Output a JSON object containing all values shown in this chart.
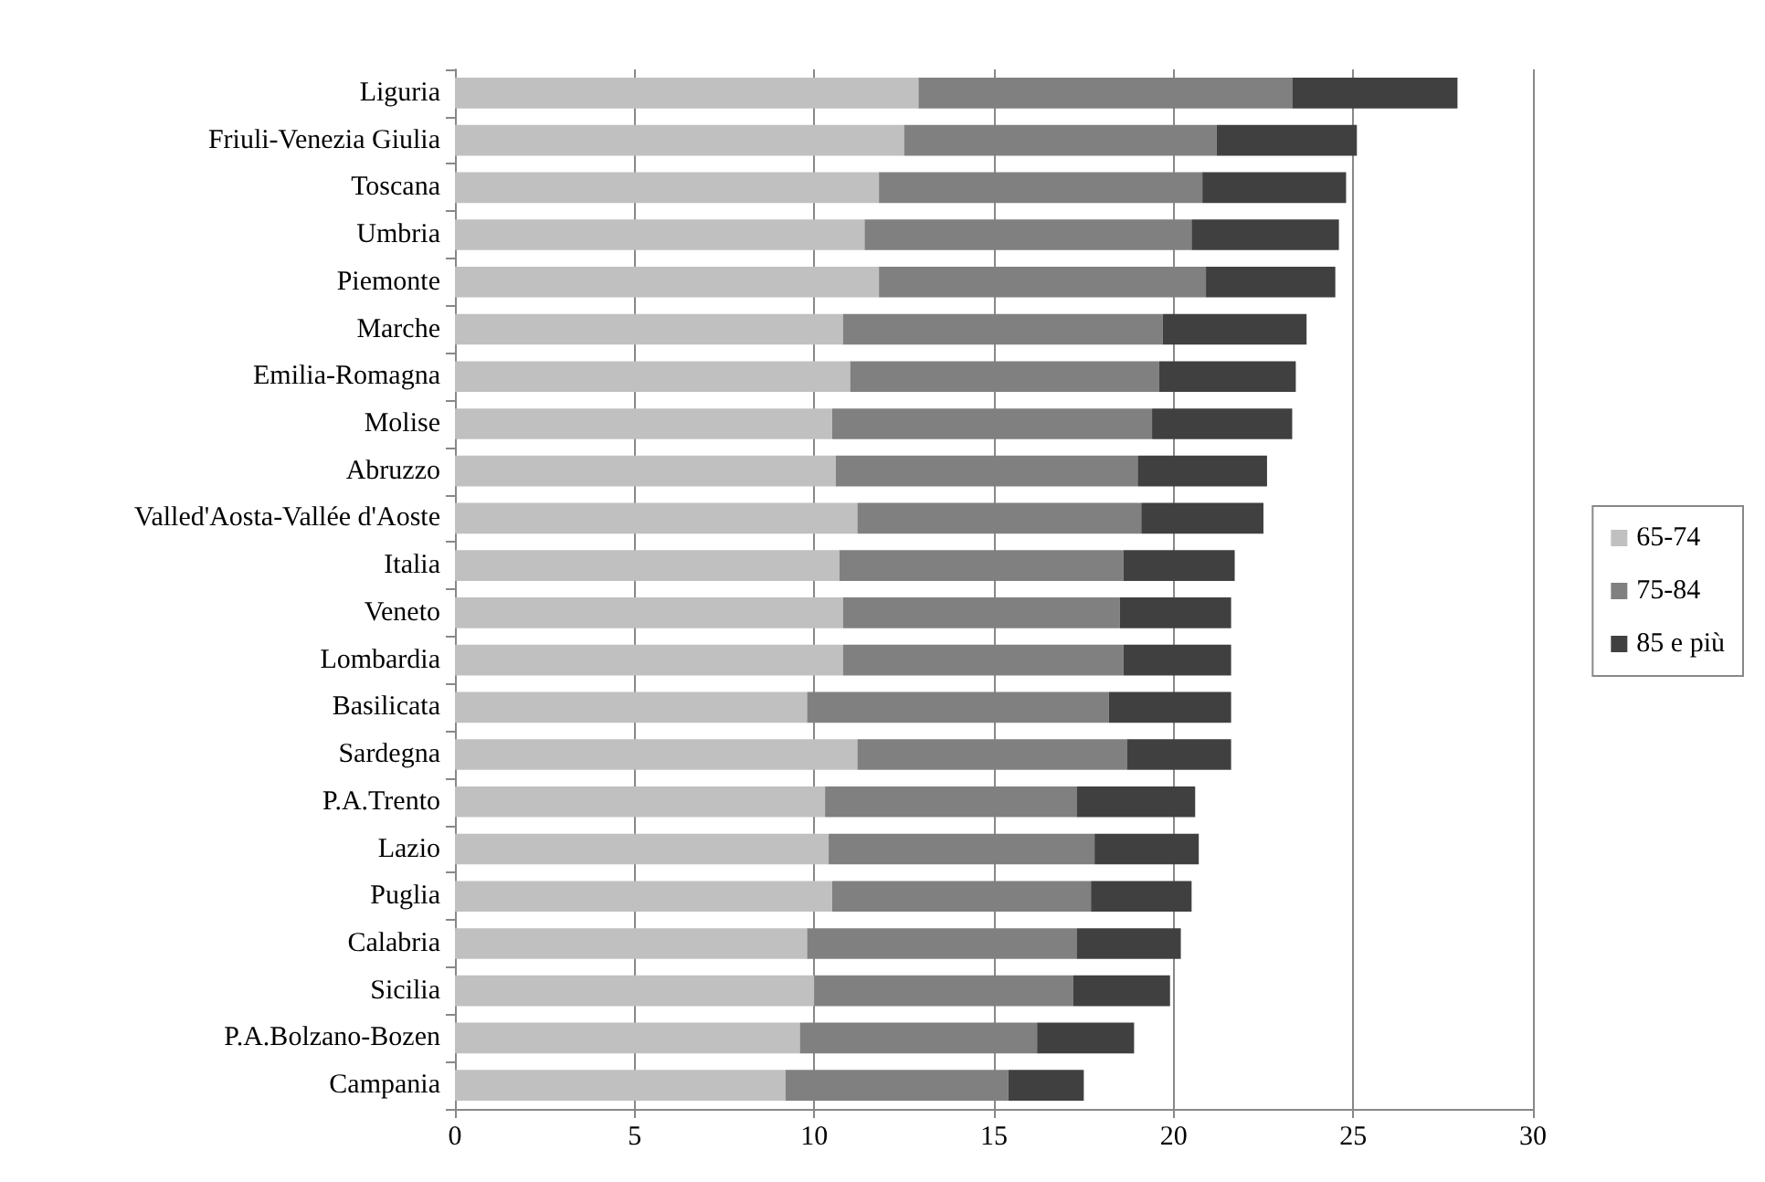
{
  "chart_data": {
    "type": "bar",
    "orientation": "horizontal",
    "stacked": true,
    "grid": "x",
    "legend": "right",
    "categories": [
      "Liguria",
      "Friuli-Venezia Giulia",
      "Toscana",
      "Umbria",
      "Piemonte",
      "Marche",
      "Emilia-Romagna",
      "Molise",
      "Abruzzo",
      "Valled'Aosta-Vallée d'Aoste",
      "Italia",
      "Veneto",
      "Lombardia",
      "Basilicata",
      "Sardegna",
      "P.A.Trento",
      "Lazio",
      "Puglia",
      "Calabria",
      "Sicilia",
      "P.A.Bolzano-Bozen",
      "Campania"
    ],
    "xlim": [
      0,
      30
    ],
    "xticks": [
      0,
      5,
      10,
      15,
      20,
      25,
      30
    ],
    "series": [
      {
        "name": "65-74",
        "color": "#c0c0c0",
        "values": [
          12.9,
          12.5,
          11.8,
          11.4,
          11.8,
          10.8,
          11.0,
          10.5,
          10.6,
          11.2,
          10.7,
          10.8,
          10.8,
          9.8,
          11.2,
          10.3,
          10.4,
          10.5,
          9.8,
          10.0,
          9.6,
          9.2
        ]
      },
      {
        "name": "75-84",
        "color": "#808080",
        "values": [
          10.4,
          8.7,
          9.0,
          9.1,
          9.1,
          8.9,
          8.6,
          8.9,
          8.4,
          7.9,
          7.9,
          7.7,
          7.8,
          8.4,
          7.5,
          7.0,
          7.4,
          7.2,
          7.5,
          7.2,
          6.6,
          6.2
        ]
      },
      {
        "name": "85 e più",
        "color": "#404040",
        "values": [
          4.6,
          3.9,
          4.0,
          4.1,
          3.6,
          4.0,
          3.8,
          3.9,
          3.6,
          3.4,
          3.1,
          3.1,
          3.0,
          3.4,
          2.9,
          3.3,
          2.9,
          2.8,
          2.9,
          2.7,
          2.7,
          2.1
        ]
      }
    ]
  }
}
